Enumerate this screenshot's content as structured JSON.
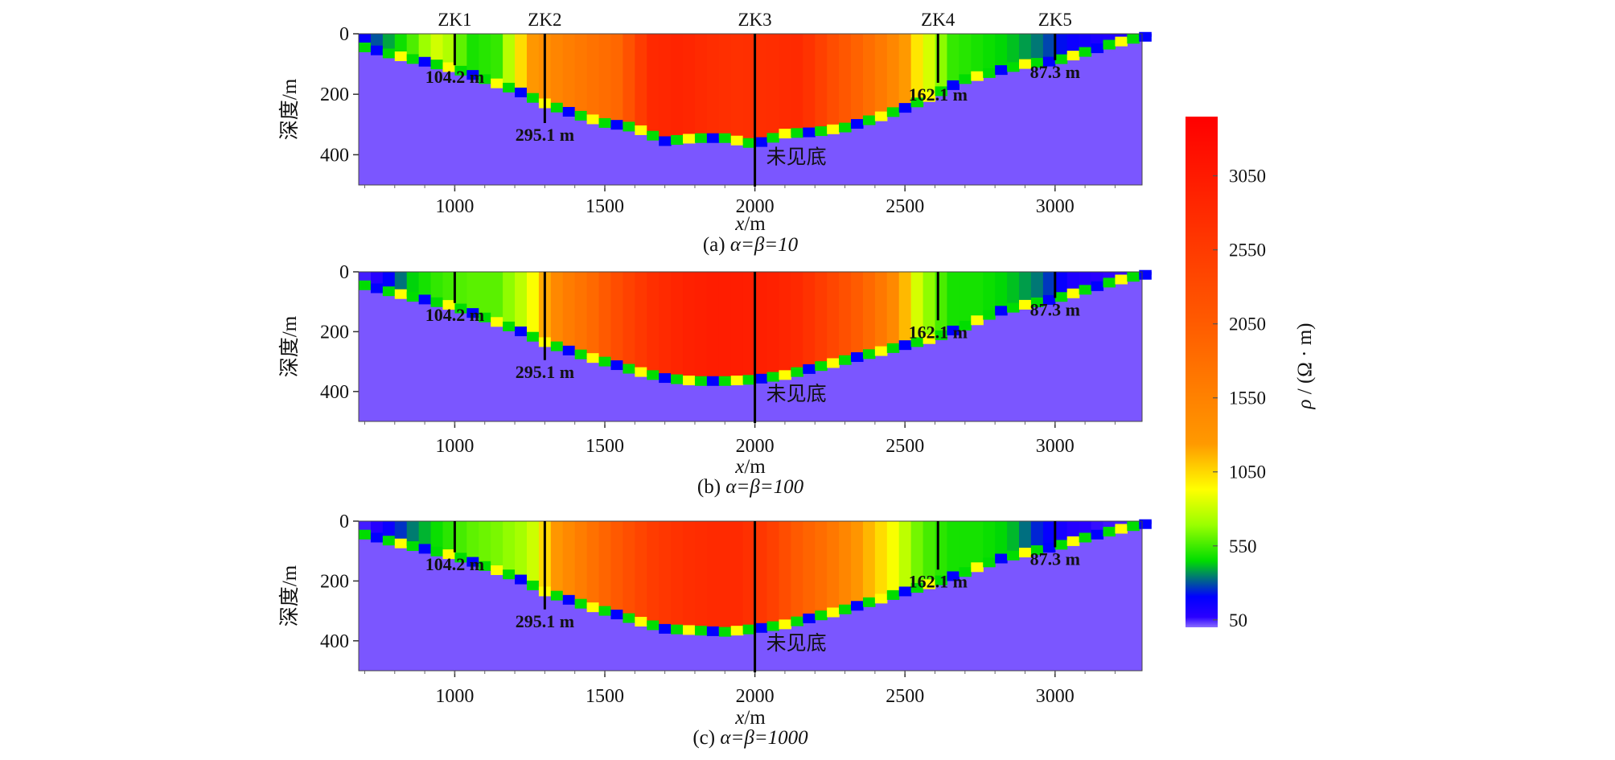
{
  "figure": {
    "panel_ylabel": "深度/m",
    "panel_xlabel_var": "x",
    "panel_xlabel_unit": "/m"
  },
  "colorbar": {
    "label_symbol": "ρ",
    "label_unit": " / (Ω · m)",
    "ticks": [
      50,
      550,
      1050,
      1550,
      2050,
      2550,
      3050
    ],
    "range": [
      0,
      3450
    ],
    "colors": [
      "#2a00ff",
      "#0000ff",
      "#00ff00",
      "#ffff00",
      "#ff9900",
      "#ff5500",
      "#ff0000"
    ]
  },
  "boreholes": [
    {
      "name": "ZK1",
      "x": 1000,
      "bottom_depth": 104.2,
      "label": "104.2 m"
    },
    {
      "name": "ZK2",
      "x": 1300,
      "bottom_depth": 295.1,
      "label": "295.1 m"
    },
    {
      "name": "ZK3",
      "x": 2000,
      "bottom_depth": 500,
      "label": "未见底"
    },
    {
      "name": "ZK4",
      "x": 2610,
      "bottom_depth": 162.1,
      "label": "162.1 m"
    },
    {
      "name": "ZK5",
      "x": 3000,
      "bottom_depth": 87.3,
      "label": "87.3 m"
    }
  ],
  "chart_data": [
    {
      "type": "heatmap",
      "caption_prefix": "(a)  ",
      "caption_param": "α=β=10",
      "xticks": [
        1000,
        1500,
        2000,
        2500,
        3000
      ],
      "yticks": [
        0,
        200,
        400
      ],
      "xlim": [
        680,
        3290
      ],
      "ylim": [
        0,
        500
      ],
      "basin_boundary": {
        "x": [
          680,
          800,
          1000,
          1200,
          1300,
          1400,
          1500,
          1600,
          1700,
          1800,
          1900,
          2000,
          2100,
          2200,
          2300,
          2400,
          2500,
          2600,
          2700,
          2800,
          2900,
          3000,
          3100,
          3200,
          3290
        ],
        "depth": [
          40,
          70,
          115,
          185,
          230,
          265,
          295,
          310,
          355,
          345,
          345,
          365,
          330,
          325,
          310,
          280,
          245,
          200,
          150,
          125,
          100,
          90,
          60,
          30,
          10
        ]
      },
      "resistivity_profile": {
        "x": [
          680,
          750,
          850,
          950,
          1050,
          1150,
          1250,
          1350,
          1450,
          1550,
          1650,
          1750,
          1850,
          1950,
          2050,
          2150,
          2250,
          2350,
          2450,
          2550,
          2650,
          2750,
          2850,
          2950,
          3050,
          3150,
          3250
        ],
        "rho": [
          100,
          300,
          500,
          800,
          450,
          500,
          1200,
          1500,
          1700,
          1900,
          2800,
          2900,
          2750,
          2700,
          2750,
          2800,
          2300,
          1900,
          1500,
          900,
          500,
          450,
          400,
          300,
          150,
          100,
          80
        ]
      }
    },
    {
      "type": "heatmap",
      "caption_prefix": "(b)  ",
      "caption_param": "α=β=100",
      "xticks": [
        1000,
        1500,
        2000,
        2500,
        3000
      ],
      "yticks": [
        0,
        200,
        400
      ],
      "xlim": [
        680,
        3290
      ],
      "ylim": [
        0,
        500
      ],
      "basin_boundary": {
        "x": [
          680,
          800,
          1000,
          1200,
          1300,
          1400,
          1500,
          1600,
          1700,
          1800,
          1900,
          2000,
          2100,
          2200,
          2300,
          2400,
          2500,
          2600,
          2700,
          2800,
          2900,
          3000,
          3100,
          3200,
          3290
        ],
        "depth": [
          40,
          70,
          115,
          190,
          235,
          270,
          300,
          330,
          355,
          365,
          365,
          360,
          345,
          320,
          295,
          270,
          245,
          220,
          180,
          135,
          110,
          90,
          60,
          30,
          10
        ]
      },
      "resistivity_profile": {
        "x": [
          680,
          750,
          850,
          950,
          1050,
          1150,
          1250,
          1350,
          1450,
          1550,
          1650,
          1750,
          1850,
          1950,
          2050,
          2150,
          2250,
          2350,
          2450,
          2550,
          2650,
          2750,
          2850,
          2950,
          3050,
          3150,
          3250
        ],
        "rho": [
          30,
          80,
          400,
          500,
          550,
          550,
          800,
          1500,
          1800,
          2300,
          2700,
          2900,
          3000,
          3000,
          2950,
          2800,
          2400,
          2000,
          1500,
          700,
          450,
          450,
          400,
          300,
          100,
          60,
          50
        ]
      }
    },
    {
      "type": "heatmap",
      "caption_prefix": "(c)  ",
      "caption_param": "α=β=1000",
      "xticks": [
        1000,
        1500,
        2000,
        2500,
        3000
      ],
      "yticks": [
        0,
        200,
        400
      ],
      "xlim": [
        680,
        3290
      ],
      "ylim": [
        0,
        500
      ],
      "basin_boundary": {
        "x": [
          680,
          800,
          1000,
          1200,
          1300,
          1400,
          1500,
          1600,
          1700,
          1800,
          1900,
          2000,
          2100,
          2200,
          2300,
          2400,
          2500,
          2600,
          2700,
          2800,
          2900,
          3000,
          3100,
          3200,
          3290
        ],
        "depth": [
          40,
          70,
          115,
          185,
          235,
          270,
          300,
          330,
          360,
          365,
          370,
          360,
          345,
          320,
          295,
          265,
          235,
          205,
          170,
          130,
          105,
          85,
          55,
          30,
          10
        ]
      },
      "resistivity_profile": {
        "x": [
          680,
          750,
          850,
          950,
          1050,
          1150,
          1250,
          1350,
          1450,
          1550,
          1650,
          1750,
          1850,
          1950,
          2050,
          2150,
          2250,
          2350,
          2450,
          2550,
          2650,
          2750,
          2850,
          2950,
          3050,
          3150,
          3250
        ],
        "rho": [
          30,
          80,
          300,
          450,
          550,
          600,
          700,
          1300,
          1700,
          2100,
          2500,
          2700,
          2800,
          2800,
          2500,
          2000,
          1700,
          1200,
          900,
          550,
          450,
          450,
          400,
          200,
          80,
          50,
          40
        ]
      }
    }
  ]
}
